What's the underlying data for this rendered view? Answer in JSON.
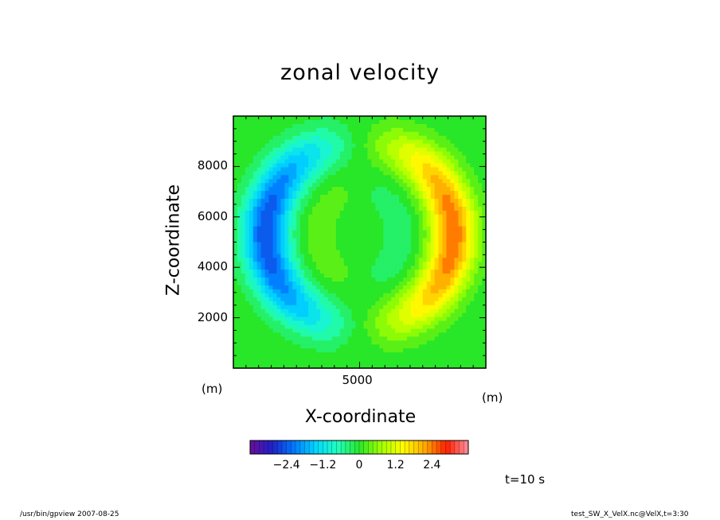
{
  "chart_data": {
    "type": "heatmap",
    "title": "zonal velocity",
    "xlabel": "X-coordinate",
    "ylabel": "Z-coordinate",
    "xunit": "(m)",
    "xunit_right": "(m)",
    "xlim": [
      0,
      10000
    ],
    "ylim": [
      0,
      10000
    ],
    "xticks": [
      {
        "value": 5000,
        "label": "5000"
      }
    ],
    "yticks": [
      {
        "value": 2000,
        "label": "2000"
      },
      {
        "value": 4000,
        "label": "4000"
      },
      {
        "value": 6000,
        "label": "6000"
      },
      {
        "value": 8000,
        "label": "8000"
      }
    ],
    "field_features": [
      {
        "x": 1500,
        "z": 5800,
        "value": -2.3
      },
      {
        "x": 8500,
        "z": 5800,
        "value": 2.3
      },
      {
        "x": 3500,
        "z": 5000,
        "value": 0.3
      },
      {
        "x": 6500,
        "z": 5000,
        "value": -0.3
      }
    ],
    "colorbar": {
      "min": -3.6,
      "max": 3.6,
      "ticks": [
        {
          "value": -2.4,
          "label": "−2.4"
        },
        {
          "value": -1.2,
          "label": "−1.2"
        },
        {
          "value": 0,
          "label": "0"
        },
        {
          "value": 1.2,
          "label": "1.2"
        },
        {
          "value": 2.4,
          "label": "2.4"
        }
      ],
      "colors": [
        "#6a0f9a",
        "#2020c8",
        "#0078ff",
        "#00d7ff",
        "#20ffc0",
        "#28e628",
        "#a0ff00",
        "#ffff00",
        "#ffaa00",
        "#ff2000",
        "#ff90a0"
      ]
    },
    "grid": false,
    "legend": "bottom"
  },
  "annotations": {
    "time": "t=10 s",
    "footer_left": "/usr/bin/gpview   2007-08-25",
    "footer_right": "test_SW_X_VelX.nc@VelX,t=3:30"
  }
}
